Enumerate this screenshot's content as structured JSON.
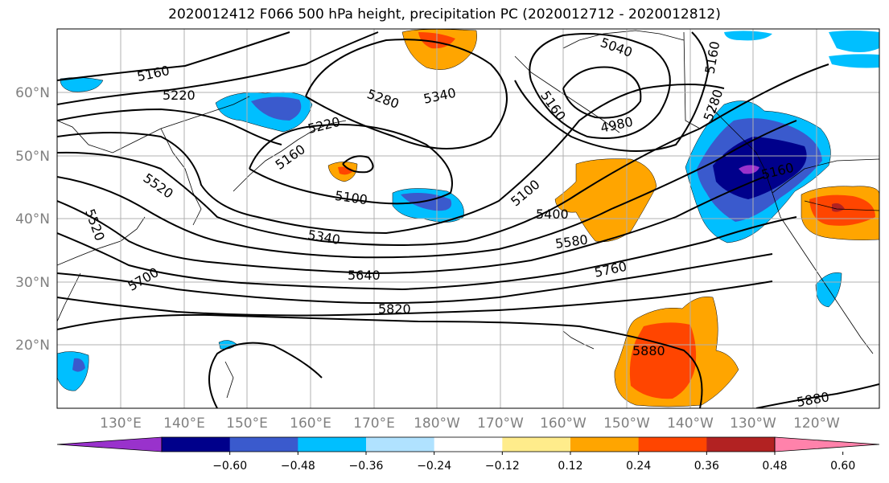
{
  "title": "2020012412 F066 500 hPa height, precipitation PC (2020012712 - 2020012812)",
  "lat_labels": [
    "60°N",
    "50°N",
    "40°N",
    "30°N",
    "20°N"
  ],
  "lon_labels": [
    "130°E",
    "140°E",
    "150°E",
    "160°E",
    "170°E",
    "180°W",
    "170°W",
    "160°W",
    "150°W",
    "140°W",
    "130°W",
    "120°W"
  ],
  "contour_labels": [
    "5160",
    "5220",
    "5280",
    "5340",
    "5040",
    "5160",
    "5280",
    "4980",
    "5160",
    "5220",
    "5100",
    "5520",
    "5520",
    "5400",
    "5580",
    "5340",
    "5700",
    "5640",
    "5760",
    "5820",
    "5880",
    "5880",
    "5160",
    "5160",
    "5100"
  ],
  "colorbar": {
    "ticks": [
      "−0.60",
      "−0.48",
      "−0.36",
      "−0.24",
      "−0.12",
      "0.12",
      "0.24",
      "0.36",
      "0.48",
      "0.60"
    ],
    "colors": [
      "#9932cc",
      "#00008b",
      "#3a5acd",
      "#00bfff",
      "#b0e2ff",
      "#ffffff",
      "#ffec8b",
      "#ffa500",
      "#ff4500",
      "#b22222",
      "#ff82ab"
    ]
  }
}
